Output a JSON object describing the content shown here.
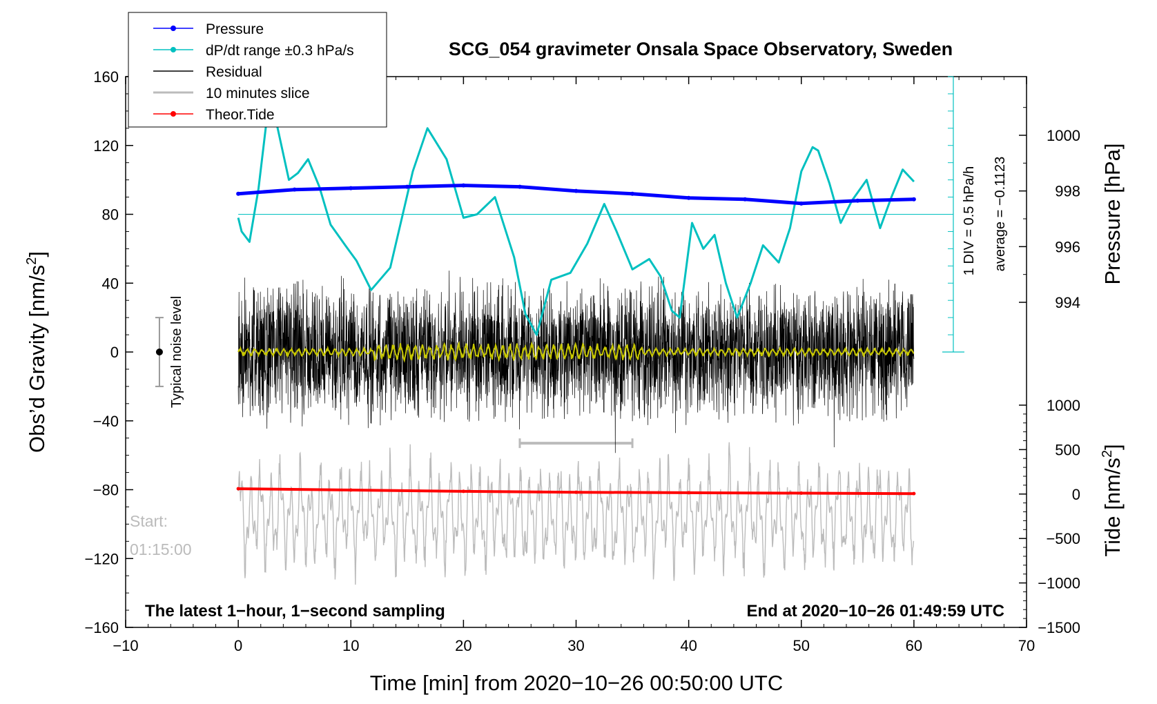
{
  "chart_data": {
    "type": "line",
    "title": "SCG_054 gravimeter Onsala Space Observatory, Sweden",
    "xlabel": "Time [min] from 2020−10−26 00:50:00 UTC",
    "ylabel_main": "Obs’d Gravity [nm/s",
    "ylabel_main_sup": "2",
    "ylabel_main_end": "]",
    "ylabel_pressure": "Pressure [hPa]",
    "ylabel_tide": "Tide [nm/s",
    "ylabel_tide_sup": "2",
    "ylabel_tide_end": "]",
    "xlim": [
      -10,
      70
    ],
    "ylim": [
      -160,
      160
    ],
    "x_ticks": [
      "−10",
      "0",
      "10",
      "20",
      "30",
      "40",
      "50",
      "60",
      "70"
    ],
    "y_ticks": [
      "160",
      "120",
      "80",
      "40",
      "0",
      "−40",
      "−80",
      "−120",
      "−160"
    ],
    "pressure_ticks": [
      "1000",
      "998",
      "996",
      "994"
    ],
    "tide_ticks": [
      "1000",
      "500",
      "0",
      "−500",
      "−1000",
      "−1500"
    ],
    "legend": [
      {
        "label": "Pressure",
        "color": "#0000ff",
        "marker": true
      },
      {
        "label": "dP/dt range ±0.3 hPa/s",
        "color": "#00c0c0",
        "marker": true
      },
      {
        "label": "Residual",
        "color": "#000000",
        "marker": false
      },
      {
        "label": "10 minutes slice",
        "color": "#bbbbbb",
        "marker": false
      },
      {
        "label": "Theor.Tide",
        "color": "#ff0000",
        "marker": true
      }
    ],
    "annotations": {
      "bottom_left": "The latest 1−hour, 1−second sampling",
      "bottom_right": "End at 2020−10−26 01:49:59 UTC",
      "start_label": "Start:",
      "start_time": "01:15:00",
      "noise_label": "Typical noise level",
      "div_label": "1 DIV = 0.5 hPa/h",
      "average_label": "average = −0.1123"
    },
    "series": [
      {
        "name": "Pressure",
        "color": "#0000ff",
        "axis": "pressure_hPa",
        "x": [
          0,
          5,
          10,
          15,
          20,
          25,
          30,
          35,
          40,
          45,
          50,
          55,
          60
        ],
        "values": [
          997.9,
          998.05,
          998.1,
          998.15,
          998.2,
          998.15,
          998.0,
          997.9,
          997.75,
          997.7,
          997.55,
          997.65,
          997.7
        ]
      },
      {
        "name": "dP/dt range ±0.3 hPa/s",
        "color": "#00c0c0",
        "axis": "gravity_scaled",
        "x": [
          0,
          0.3,
          1,
          1.8,
          2.8,
          3.5,
          4.5,
          5.3,
          6.2,
          7.2,
          8.2,
          9.5,
          10.5,
          11.8,
          13.5,
          15.5,
          16.8,
          18.5,
          20.0,
          21.2,
          22.8,
          24.5,
          25.5,
          26.5,
          27.8,
          29.5,
          31.0,
          32.5,
          33.6,
          35.0,
          36.5,
          37.5,
          38.5,
          39.2,
          40.3,
          41.3,
          42.3,
          43.3,
          44.3,
          45.5,
          46.6,
          48.0,
          49.0,
          50.0,
          51.0,
          51.5,
          52.5,
          53.5,
          54.5,
          55.8,
          57.0,
          58.0,
          59.0,
          60.0
        ],
        "values": [
          78,
          70,
          64,
          95,
          150,
          130,
          100,
          104,
          112,
          96,
          74,
          62,
          53,
          36,
          49,
          105,
          130,
          112,
          78,
          80,
          90,
          55,
          22,
          10,
          42,
          46,
          63,
          86,
          70,
          48,
          54,
          44,
          24,
          20,
          75,
          60,
          68,
          40,
          20,
          40,
          62,
          52,
          72,
          105,
          119,
          117,
          98,
          75,
          88,
          100,
          72,
          90,
          106,
          99
        ]
      },
      {
        "name": "Residual",
        "color": "#000000",
        "axis": "gravity",
        "x": [
          0,
          60
        ],
        "values": [
          0,
          0
        ],
        "envelope": [
          -45,
          45
        ]
      },
      {
        "name": "Residual (smoothed)",
        "color": "#c8c800",
        "axis": "gravity",
        "x": [
          0,
          60
        ],
        "values": [
          0,
          0
        ],
        "envelope": [
          -4,
          4
        ]
      },
      {
        "name": "10 minutes slice",
        "color": "#bbbbbb",
        "axis": "gravity",
        "x": [
          0,
          60
        ],
        "values": [
          -95,
          -95
        ],
        "envelope": [
          -150,
          -62
        ],
        "slice_range": [
          25,
          35
        ]
      },
      {
        "name": "Theor.Tide",
        "color": "#ff0000",
        "axis": "tide_nm_s2",
        "x": [
          0,
          10,
          20,
          30,
          40,
          50,
          60
        ],
        "values": [
          60,
          45,
          30,
          20,
          15,
          10,
          5
        ]
      }
    ],
    "noise_level": {
      "x": -7,
      "center": 0,
      "range": [
        -20,
        20
      ]
    }
  }
}
